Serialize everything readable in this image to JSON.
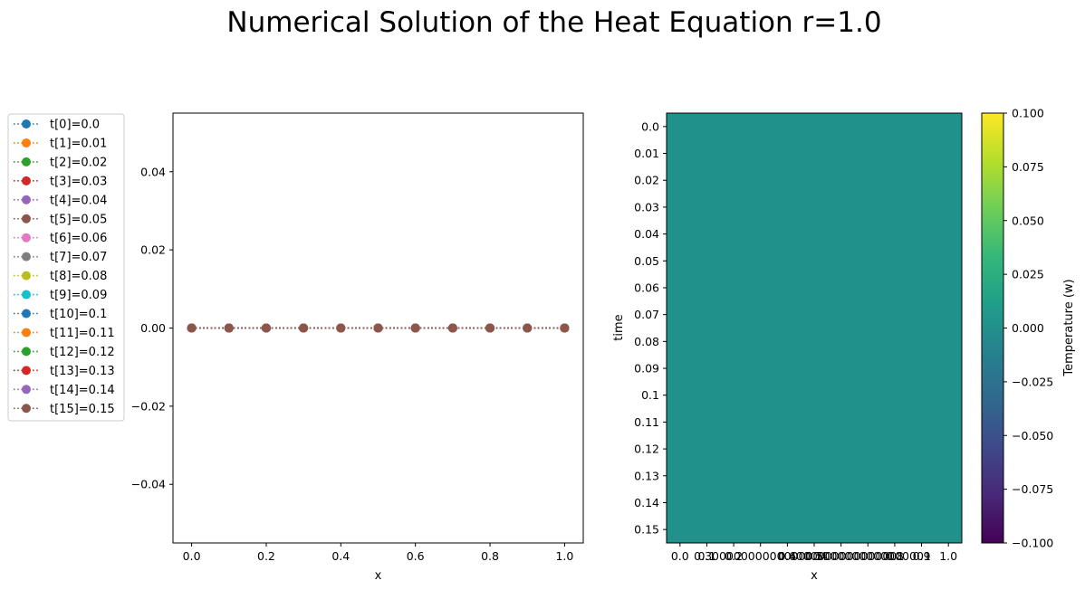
{
  "figure": {
    "title": "Numerical Solution of the  Heat Equation r=1.0"
  },
  "chart_data": [
    {
      "type": "line",
      "xlabel": "x",
      "ylabel": "",
      "xlim": [
        -0.05,
        1.05
      ],
      "ylim": [
        -0.055,
        0.055
      ],
      "xticks": [
        0.0,
        0.2,
        0.4,
        0.6,
        0.8,
        1.0
      ],
      "xtick_labels": [
        "0.0",
        "0.2",
        "0.4",
        "0.6",
        "0.8",
        "1.0"
      ],
      "yticks": [
        -0.04,
        -0.02,
        0.0,
        0.02,
        0.04
      ],
      "ytick_labels": [
        "−0.04",
        "−0.02",
        "0.00",
        "0.02",
        "0.04"
      ],
      "x": [
        0.0,
        0.1,
        0.2,
        0.3,
        0.4,
        0.5,
        0.6,
        0.7,
        0.8,
        0.9,
        1.0
      ],
      "legend_position": "left, outside",
      "series": [
        {
          "name": "t[0]=0.0",
          "color": "#1f77b4",
          "values": [
            0,
            0,
            0,
            0,
            0,
            0,
            0,
            0,
            0,
            0,
            0
          ]
        },
        {
          "name": "t[1]=0.01",
          "color": "#ff7f0e",
          "values": [
            0,
            0,
            0,
            0,
            0,
            0,
            0,
            0,
            0,
            0,
            0
          ]
        },
        {
          "name": "t[2]=0.02",
          "color": "#2ca02c",
          "values": [
            0,
            0,
            0,
            0,
            0,
            0,
            0,
            0,
            0,
            0,
            0
          ]
        },
        {
          "name": "t[3]=0.03",
          "color": "#d62728",
          "values": [
            0,
            0,
            0,
            0,
            0,
            0,
            0,
            0,
            0,
            0,
            0
          ]
        },
        {
          "name": "t[4]=0.04",
          "color": "#9467bd",
          "values": [
            0,
            0,
            0,
            0,
            0,
            0,
            0,
            0,
            0,
            0,
            0
          ]
        },
        {
          "name": "t[5]=0.05",
          "color": "#8c564b",
          "values": [
            0,
            0,
            0,
            0,
            0,
            0,
            0,
            0,
            0,
            0,
            0
          ]
        },
        {
          "name": "t[6]=0.06",
          "color": "#e377c2",
          "values": [
            0,
            0,
            0,
            0,
            0,
            0,
            0,
            0,
            0,
            0,
            0
          ]
        },
        {
          "name": "t[7]=0.07",
          "color": "#7f7f7f",
          "values": [
            0,
            0,
            0,
            0,
            0,
            0,
            0,
            0,
            0,
            0,
            0
          ]
        },
        {
          "name": "t[8]=0.08",
          "color": "#bcbd22",
          "values": [
            0,
            0,
            0,
            0,
            0,
            0,
            0,
            0,
            0,
            0,
            0
          ]
        },
        {
          "name": "t[9]=0.09",
          "color": "#17becf",
          "values": [
            0,
            0,
            0,
            0,
            0,
            0,
            0,
            0,
            0,
            0,
            0
          ]
        },
        {
          "name": "t[10]=0.1",
          "color": "#1f77b4",
          "values": [
            0,
            0,
            0,
            0,
            0,
            0,
            0,
            0,
            0,
            0,
            0
          ]
        },
        {
          "name": "t[11]=0.11",
          "color": "#ff7f0e",
          "values": [
            0,
            0,
            0,
            0,
            0,
            0,
            0,
            0,
            0,
            0,
            0
          ]
        },
        {
          "name": "t[12]=0.12",
          "color": "#2ca02c",
          "values": [
            0,
            0,
            0,
            0,
            0,
            0,
            0,
            0,
            0,
            0,
            0
          ]
        },
        {
          "name": "t[13]=0.13",
          "color": "#d62728",
          "values": [
            0,
            0,
            0,
            0,
            0,
            0,
            0,
            0,
            0,
            0,
            0
          ]
        },
        {
          "name": "t[14]=0.14",
          "color": "#9467bd",
          "values": [
            0,
            0,
            0,
            0,
            0,
            0,
            0,
            0,
            0,
            0,
            0
          ]
        },
        {
          "name": "t[15]=0.15",
          "color": "#8c564b",
          "values": [
            0,
            0,
            0,
            0,
            0,
            0,
            0,
            0,
            0,
            0,
            0
          ]
        }
      ]
    },
    {
      "type": "heatmap",
      "xlabel": "x",
      "ylabel": "time",
      "xtick_labels": [
        "0.0",
        "0.1",
        "0.2",
        "0.30000000000000004",
        "0.4",
        "0.5",
        "0.6000000000000001",
        "0.7000000000000001",
        "0.8",
        "0.9",
        "1.0"
      ],
      "ytick_labels": [
        "0.0",
        "0.01",
        "0.02",
        "0.03",
        "0.04",
        "0.05",
        "0.06",
        "0.07",
        "0.08",
        "0.09",
        "0.1",
        "0.11",
        "0.12",
        "0.13",
        "0.14",
        "0.15"
      ],
      "cell_value": 0.0,
      "cell_color": "#21918c",
      "colorbar": {
        "label": "Temperature (w)",
        "range": [
          -0.1,
          0.1
        ],
        "ticks": [
          -0.1,
          -0.075,
          -0.05,
          -0.025,
          0.0,
          0.025,
          0.05,
          0.075,
          0.1
        ],
        "tick_labels": [
          "−0.100",
          "−0.075",
          "−0.050",
          "−0.025",
          "0.000",
          "0.025",
          "0.050",
          "0.075",
          "0.100"
        ],
        "colormap": "viridis",
        "stops": [
          "#440154",
          "#482878",
          "#3e4989",
          "#31688e",
          "#26828e",
          "#1f9e89",
          "#35b779",
          "#6ece58",
          "#b5de2b",
          "#fde725"
        ]
      }
    }
  ]
}
